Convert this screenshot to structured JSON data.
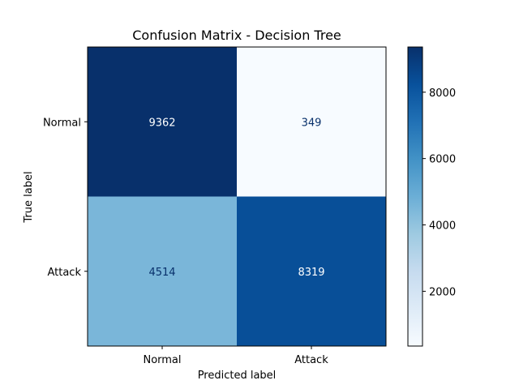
{
  "chart_data": {
    "type": "heatmap",
    "title": "Confusion Matrix - Decision Tree",
    "xlabel": "Predicted label",
    "ylabel": "True label",
    "x_categories": [
      "Normal",
      "Attack"
    ],
    "y_categories": [
      "Normal",
      "Attack"
    ],
    "matrix": [
      [
        9362,
        349
      ],
      [
        4514,
        8319
      ]
    ],
    "colormap": "Blues",
    "colorbar": {
      "range": [
        349,
        9362
      ],
      "ticks": [
        2000,
        4000,
        6000,
        8000
      ]
    },
    "cell_text_colors": {
      "light": "#ffffff",
      "dark": "#08306b"
    }
  }
}
